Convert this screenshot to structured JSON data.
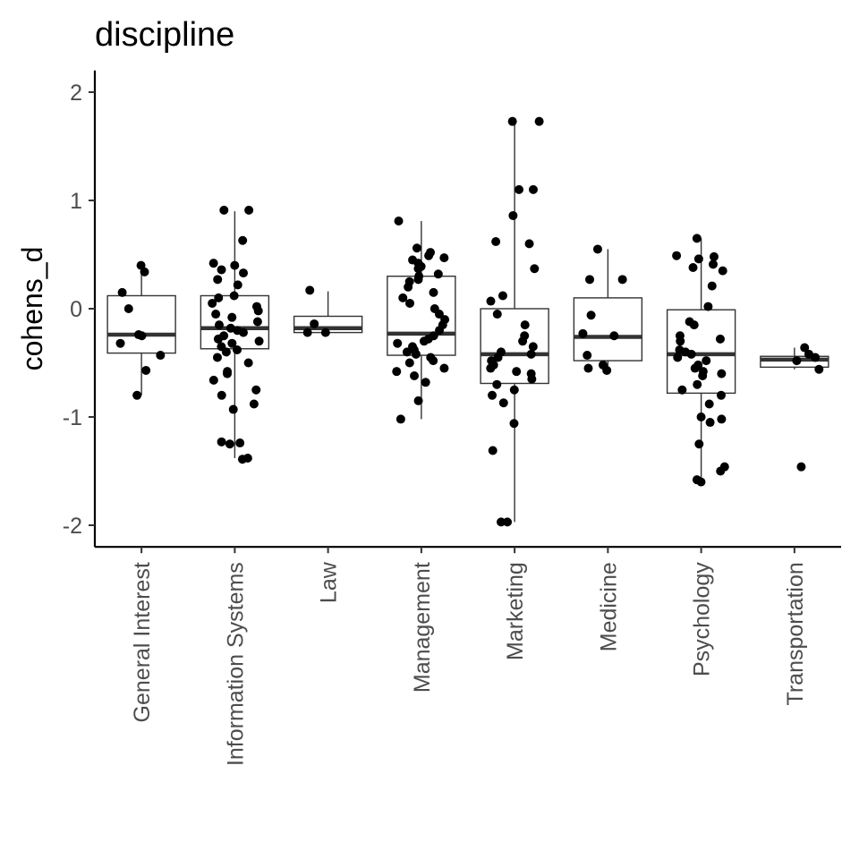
{
  "chart_data": {
    "type": "box",
    "title": "discipline",
    "xlabel": "",
    "ylabel": "cohens_d",
    "ylim": [
      -2.2,
      2.2
    ],
    "yticks": [
      -2,
      -1,
      0,
      1,
      2
    ],
    "ytick_labels": [
      "-2",
      "-1",
      "0",
      "1",
      "2"
    ],
    "grid": false,
    "legend": "none",
    "categories": [
      "General Interest",
      "Information Systems",
      "Law",
      "Management",
      "Marketing",
      "Medicine",
      "Psychology",
      "Transportation"
    ],
    "boxes": [
      {
        "q1": -0.41,
        "median": -0.24,
        "q3": 0.12,
        "whisker_low": -0.8,
        "whisker_high": 0.4
      },
      {
        "q1": -0.37,
        "median": -0.18,
        "q3": 0.12,
        "whisker_low": -1.38,
        "whisker_high": 0.9
      },
      {
        "q1": -0.22,
        "median": -0.18,
        "q3": -0.07,
        "whisker_low": -0.22,
        "whisker_high": 0.16
      },
      {
        "q1": -0.43,
        "median": -0.23,
        "q3": 0.3,
        "whisker_low": -1.02,
        "whisker_high": 0.81
      },
      {
        "q1": -0.69,
        "median": -0.42,
        "q3": 0.0,
        "whisker_low": -1.97,
        "whisker_high": 1.73
      },
      {
        "q1": -0.48,
        "median": -0.26,
        "q3": 0.1,
        "whisker_low": -0.57,
        "whisker_high": 0.55
      },
      {
        "q1": -0.78,
        "median": -0.42,
        "q3": -0.01,
        "whisker_low": -1.6,
        "whisker_high": 0.65
      },
      {
        "q1": -0.54,
        "median": -0.47,
        "q3": -0.44,
        "whisker_low": -0.56,
        "whisker_high": -0.36
      }
    ],
    "points": [
      [
        0.4,
        0.34,
        0.15,
        0.0,
        -0.24,
        -0.25,
        -0.32,
        -0.43,
        -0.57,
        -0.8
      ],
      [
        0.91,
        0.91,
        0.63,
        0.42,
        0.4,
        0.36,
        0.33,
        0.27,
        0.22,
        0.12,
        0.1,
        0.05,
        0.02,
        -0.02,
        -0.05,
        -0.08,
        -0.12,
        -0.15,
        -0.18,
        -0.2,
        -0.22,
        -0.25,
        -0.28,
        -0.3,
        -0.32,
        -0.35,
        -0.38,
        -0.4,
        -0.45,
        -0.5,
        -0.58,
        -0.6,
        -0.66,
        -0.75,
        -0.8,
        -0.88,
        -0.93,
        -1.23,
        -1.24,
        -1.25,
        -1.38,
        -1.39
      ],
      [
        0.17,
        -0.14,
        -0.22,
        -0.22
      ],
      [
        0.81,
        0.56,
        0.52,
        0.49,
        0.47,
        0.45,
        0.42,
        0.39,
        0.37,
        0.32,
        0.3,
        0.27,
        0.25,
        0.2,
        0.15,
        0.1,
        0.05,
        0.0,
        -0.05,
        -0.1,
        -0.15,
        -0.2,
        -0.25,
        -0.28,
        -0.3,
        -0.32,
        -0.35,
        -0.38,
        -0.4,
        -0.42,
        -0.45,
        -0.48,
        -0.5,
        -0.55,
        -0.58,
        -0.62,
        -0.68,
        -0.85,
        -1.02
      ],
      [
        1.73,
        1.73,
        1.1,
        1.1,
        0.86,
        0.62,
        0.6,
        0.37,
        0.12,
        0.07,
        -0.05,
        -0.15,
        -0.25,
        -0.3,
        -0.35,
        -0.4,
        -0.42,
        -0.45,
        -0.48,
        -0.52,
        -0.55,
        -0.58,
        -0.6,
        -0.65,
        -0.7,
        -0.75,
        -0.8,
        -0.87,
        -1.06,
        -1.31,
        -1.97,
        -1.97
      ],
      [
        0.55,
        0.27,
        0.27,
        -0.06,
        -0.23,
        -0.25,
        -0.43,
        -0.52,
        -0.55,
        -0.57
      ],
      [
        0.65,
        0.49,
        0.48,
        0.46,
        0.41,
        0.38,
        0.35,
        0.21,
        0.02,
        -0.12,
        -0.15,
        -0.25,
        -0.28,
        -0.3,
        -0.38,
        -0.4,
        -0.42,
        -0.45,
        -0.48,
        -0.52,
        -0.55,
        -0.58,
        -0.6,
        -0.62,
        -0.7,
        -0.75,
        -0.8,
        -0.88,
        -1.0,
        -1.02,
        -1.05,
        -1.25,
        -1.46,
        -1.5,
        -1.58,
        -1.6
      ],
      [
        -0.36,
        -0.42,
        -0.45,
        -0.48,
        -0.56,
        -1.46
      ]
    ]
  }
}
